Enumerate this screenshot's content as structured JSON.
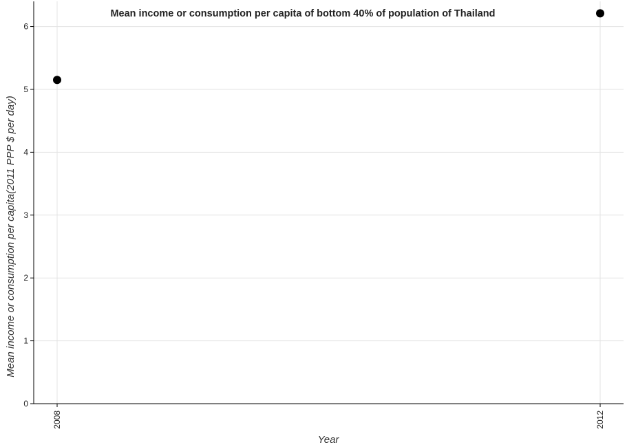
{
  "chart_data": {
    "type": "scatter",
    "title": "Mean income or consumption per capita of bottom 40% of population of Thailand",
    "xlabel": "Year",
    "ylabel": "Mean income or consumption per capita(2011 PPP $ per day)",
    "categories": [
      "2008",
      "2012"
    ],
    "series": [
      {
        "values": [
          5.15,
          6.21
        ],
        "color": "#000000"
      }
    ],
    "ylim": [
      0,
      6.4
    ],
    "yticks": [
      "0",
      "1",
      "2",
      "3",
      "4",
      "5",
      "6"
    ],
    "grid": true,
    "legend": "none"
  }
}
